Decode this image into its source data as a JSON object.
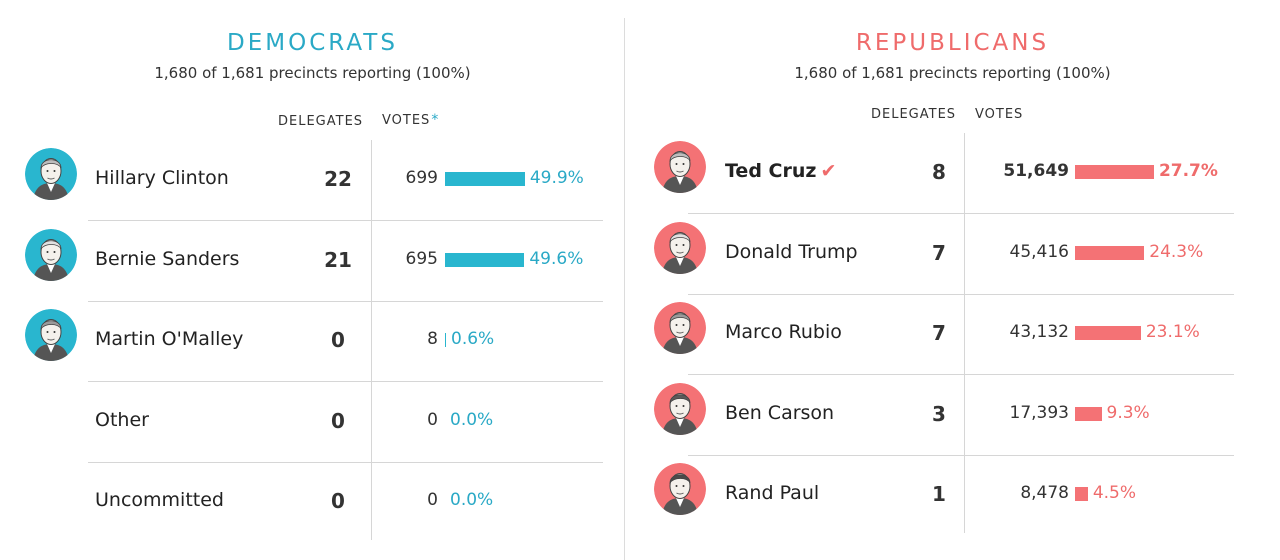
{
  "colors": {
    "dem": "#29b6cf",
    "rep": "#f47275",
    "dem_text": "#2aa9c6",
    "rep_text": "#ef6b6b"
  },
  "democrats": {
    "title": "DEMOCRATS",
    "reporting": "1,680 of 1,681 precincts reporting (100%)",
    "delegates_header": "DELEGATES",
    "votes_header": "VOTES",
    "votes_header_mark": "*",
    "candidates": [
      {
        "name": "Hillary Clinton",
        "delegates": "22",
        "votes": "699",
        "pct_label": "49.9%",
        "pct": 49.9,
        "has_photo": true,
        "photo_icon": "hillary-clinton-portrait-icon"
      },
      {
        "name": "Bernie Sanders",
        "delegates": "21",
        "votes": "695",
        "pct_label": "49.6%",
        "pct": 49.6,
        "has_photo": true,
        "photo_icon": "bernie-sanders-portrait-icon"
      },
      {
        "name": "Martin O'Malley",
        "delegates": "0",
        "votes": "8",
        "pct_label": "0.6%",
        "pct": 0.6,
        "has_photo": true,
        "photo_icon": "martin-omalley-portrait-icon"
      },
      {
        "name": "Other",
        "delegates": "0",
        "votes": "0",
        "pct_label": "0.0%",
        "pct": 0.0,
        "has_photo": false
      },
      {
        "name": "Uncommitted",
        "delegates": "0",
        "votes": "0",
        "pct_label": "0.0%",
        "pct": 0.0,
        "has_photo": false
      }
    ]
  },
  "republicans": {
    "title": "REPUBLICANS",
    "reporting": "1,680 of 1,681 precincts reporting (100%)",
    "delegates_header": "DELEGATES",
    "votes_header": "VOTES",
    "candidates": [
      {
        "name": "Ted Cruz",
        "winner": true,
        "winner_icon": "checkmark-icon",
        "delegates": "8",
        "votes": "51,649",
        "pct_label": "27.7%",
        "pct": 27.7,
        "photo_icon": "ted-cruz-portrait-icon"
      },
      {
        "name": "Donald Trump",
        "delegates": "7",
        "votes": "45,416",
        "pct_label": "24.3%",
        "pct": 24.3,
        "photo_icon": "donald-trump-portrait-icon"
      },
      {
        "name": "Marco Rubio",
        "delegates": "7",
        "votes": "43,132",
        "pct_label": "23.1%",
        "pct": 23.1,
        "photo_icon": "marco-rubio-portrait-icon"
      },
      {
        "name": "Ben Carson",
        "delegates": "3",
        "votes": "17,393",
        "pct_label": "9.3%",
        "pct": 9.3,
        "photo_icon": "ben-carson-portrait-icon"
      },
      {
        "name": "Rand Paul",
        "delegates": "1",
        "votes": "8,478",
        "pct_label": "4.5%",
        "pct": 4.5,
        "photo_icon": "rand-paul-portrait-icon"
      }
    ]
  },
  "chart_data": [
    {
      "type": "bar",
      "title": "DEMOCRATS",
      "subtitle": "1,680 of 1,681 precincts reporting (100%)",
      "categories": [
        "Hillary Clinton",
        "Bernie Sanders",
        "Martin O'Malley",
        "Other",
        "Uncommitted"
      ],
      "series": [
        {
          "name": "DELEGATES",
          "values": [
            22,
            21,
            0,
            0,
            0
          ]
        },
        {
          "name": "VOTES",
          "values": [
            699,
            695,
            8,
            0,
            0
          ]
        },
        {
          "values": [
            49.9,
            49.6,
            0.6,
            0.0,
            0.0
          ]
        }
      ]
    },
    {
      "type": "bar",
      "title": "REPUBLICANS",
      "subtitle": "1,680 of 1,681 precincts reporting (100%)",
      "categories": [
        "Ted Cruz",
        "Donald Trump",
        "Marco Rubio",
        "Ben Carson",
        "Rand Paul"
      ],
      "series": [
        {
          "name": "DELEGATES",
          "values": [
            8,
            7,
            7,
            3,
            1
          ]
        },
        {
          "name": "VOTES",
          "values": [
            51649,
            45416,
            43132,
            17393,
            8478
          ]
        },
        {
          "values": [
            27.7,
            24.3,
            23.1,
            9.3,
            4.5
          ]
        }
      ]
    }
  ]
}
